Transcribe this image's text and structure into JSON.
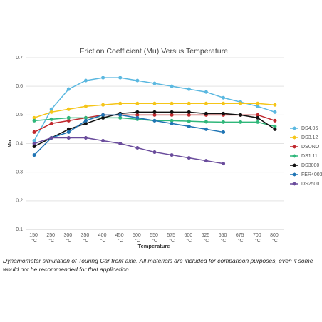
{
  "chart_data": {
    "type": "line",
    "title": "Friction Coefficient (Mu) Versus Temperature",
    "x_label": "Temperature",
    "y_label": "Mu",
    "categories": [
      "150 °C",
      "250 °C",
      "300 °C",
      "350 °C",
      "400 °C",
      "450 °C",
      "500 °C",
      "550 °C",
      "575 °C",
      "600 °C",
      "625 °C",
      "650 °C",
      "675 °C",
      "700 °C",
      "800 °C"
    ],
    "ylim": [
      0.1,
      0.7
    ],
    "yticks": [
      0.1,
      0.2,
      0.3,
      0.4,
      0.5,
      0.6,
      0.7
    ],
    "grid": true,
    "legend": "right",
    "series": [
      {
        "name": "DS4.06",
        "color": "#5bb8e0",
        "values": [
          0.41,
          0.52,
          0.59,
          0.62,
          0.63,
          0.63,
          0.62,
          0.61,
          0.6,
          0.59,
          0.58,
          0.56,
          0.545,
          0.53,
          0.51
        ]
      },
      {
        "name": "DS3.12",
        "color": "#f5c518",
        "values": [
          0.49,
          0.51,
          0.52,
          0.53,
          0.535,
          0.54,
          0.54,
          0.54,
          0.54,
          0.54,
          0.54,
          0.54,
          0.54,
          0.54,
          0.535
        ]
      },
      {
        "name": "DSUNO",
        "color": "#c0282d",
        "values": [
          0.44,
          0.47,
          0.48,
          0.49,
          0.5,
          0.5,
          0.5,
          0.5,
          0.5,
          0.5,
          0.5,
          0.5,
          0.5,
          0.5,
          0.48
        ]
      },
      {
        "name": "DS1.11",
        "color": "#2fb77a",
        "values": [
          0.48,
          0.485,
          0.49,
          0.49,
          0.49,
          0.49,
          0.485,
          0.48,
          0.48,
          0.478,
          0.476,
          0.475,
          0.475,
          0.475,
          0.46
        ]
      },
      {
        "name": "DS3000",
        "color": "#111111",
        "values": [
          0.39,
          0.42,
          0.45,
          0.47,
          0.49,
          0.505,
          0.51,
          0.51,
          0.51,
          0.51,
          0.505,
          0.505,
          0.5,
          0.49,
          0.45
        ]
      },
      {
        "name": "FER4003",
        "color": "#1f74b4",
        "values": [
          0.36,
          0.42,
          0.44,
          0.48,
          0.5,
          0.5,
          0.49,
          0.48,
          0.47,
          0.46,
          0.45,
          0.44,
          null,
          null,
          null
        ]
      },
      {
        "name": "DS2500",
        "color": "#6a4c9c",
        "values": [
          0.4,
          0.42,
          0.42,
          0.42,
          0.41,
          0.4,
          0.385,
          0.37,
          0.36,
          0.35,
          0.34,
          0.33,
          null,
          null,
          null
        ]
      }
    ]
  },
  "caption": "Dynamometer simulation of Touring Car front axle. All materials are included for comparison purposes, even if some would not be recommended for that application."
}
